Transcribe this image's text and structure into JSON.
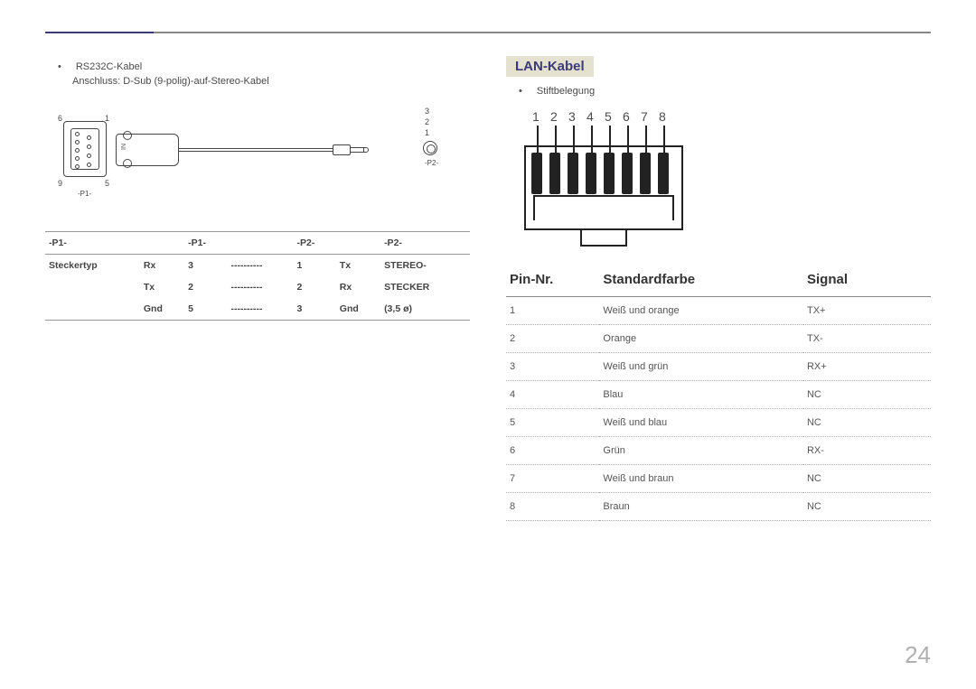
{
  "page_number": "24",
  "left": {
    "bullet": "RS232C-Kabel",
    "subline": "Anschluss: D-Sub (9-polig)-auf-Stereo-Kabel",
    "diagram": {
      "db9_nums": {
        "tl": "6",
        "tr": "1",
        "bl": "9",
        "br": "5"
      },
      "p1_label": "-P1-",
      "p2_label": "-P2-",
      "jack_nums": [
        "3",
        "2",
        "1"
      ],
      "in_label": "IN"
    },
    "table": {
      "headers": [
        "-P1-",
        "",
        "-P1-",
        "",
        "-P2-",
        "",
        "-P2-"
      ],
      "rows": [
        [
          "Steckertyp",
          "Rx",
          "3",
          "----------",
          "1",
          "Tx",
          "STEREO-"
        ],
        [
          "",
          "Tx",
          "2",
          "----------",
          "2",
          "Rx",
          "STECKER"
        ],
        [
          "",
          "Gnd",
          "5",
          "----------",
          "3",
          "Gnd",
          "(3,5 ø)"
        ]
      ]
    }
  },
  "right": {
    "title": "LAN-Kabel",
    "bullet": "Stiftbelegung",
    "rj_nums": [
      "1",
      "2",
      "3",
      "4",
      "5",
      "6",
      "7",
      "8"
    ],
    "table": {
      "headers": [
        "Pin-Nr.",
        "Standardfarbe",
        "Signal"
      ],
      "col_widths": [
        "22%",
        "48%",
        "30%"
      ],
      "rows": [
        [
          "1",
          "Weiß und orange",
          "TX+"
        ],
        [
          "2",
          "Orange",
          "TX-"
        ],
        [
          "3",
          "Weiß und grün",
          "RX+"
        ],
        [
          "4",
          "Blau",
          "NC"
        ],
        [
          "5",
          "Weiß und blau",
          "NC"
        ],
        [
          "6",
          "Grün",
          "RX-"
        ],
        [
          "7",
          "Weiß und braun",
          "NC"
        ],
        [
          "8",
          "Braun",
          "NC"
        ]
      ]
    }
  }
}
